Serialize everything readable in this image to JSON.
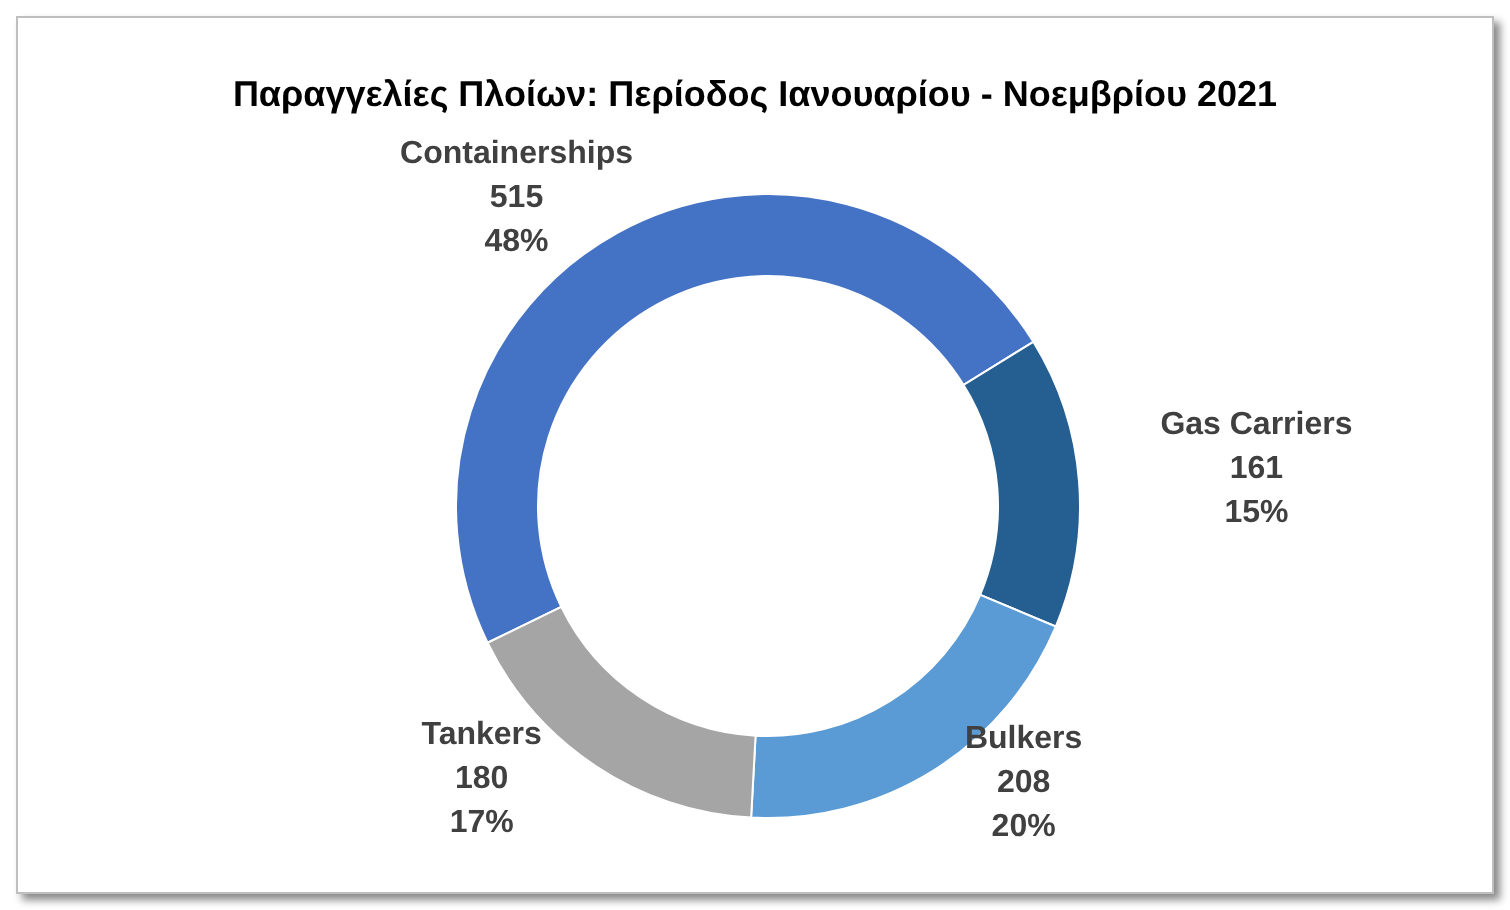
{
  "chart_data": {
    "type": "donut",
    "title": "Παραγγελίες Πλοίων: Περίοδος Ιανουαρίου - Νοεμβρίου 2021",
    "categories": [
      "Containerships",
      "Gas Carriers",
      "Bulkers",
      "Tankers"
    ],
    "values": [
      515,
      161,
      208,
      180
    ],
    "colors": [
      "#4472c4",
      "#255e91",
      "#5b9bd5",
      "#a5a5a5"
    ],
    "value_labels": [
      "515\n48%",
      "161\n15%",
      "208\n20%",
      "180\n17%"
    ],
    "legend": false
  }
}
